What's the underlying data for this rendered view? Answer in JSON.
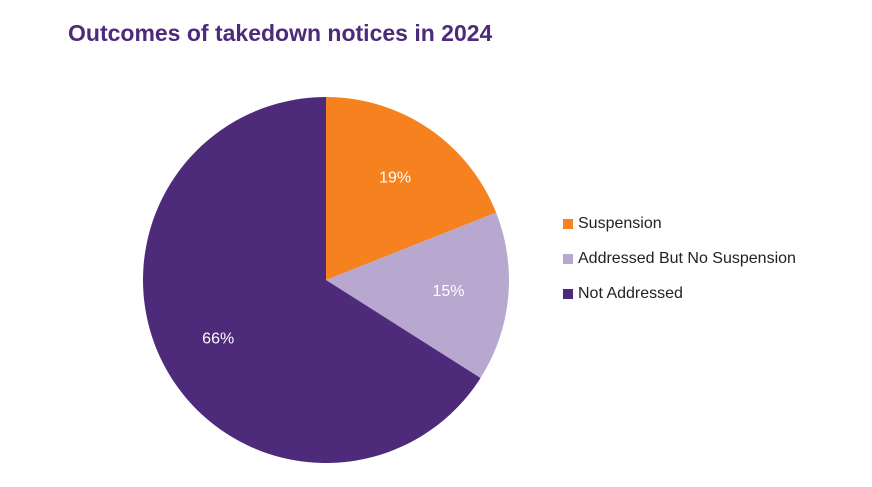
{
  "chart_data": {
    "type": "pie",
    "title": "Outcomes of takedown notices in 2024",
    "categories": [
      "Suspension",
      "Addressed But No Suspension",
      "Not Addressed"
    ],
    "values": [
      19,
      15,
      66
    ],
    "data_labels": [
      "19%",
      "15%",
      "66%"
    ],
    "colors": [
      "#f5821f",
      "#b8a8cf",
      "#4e2a7a"
    ],
    "data_label_color": "#ffffff",
    "start_angle": "12 o'clock",
    "direction": "clockwise",
    "legend_placement": "right"
  }
}
